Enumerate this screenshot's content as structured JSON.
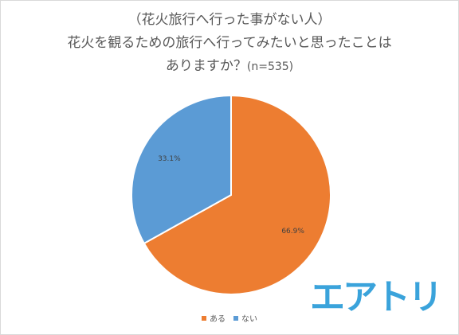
{
  "title": {
    "line1": "（花火旅行へ行った事がない人）",
    "line2": "花火を観るための旅行へ行ってみたいと思ったことは",
    "line3_main": "ありますか？",
    "line3_n": "(n=535)"
  },
  "chart_data": {
    "type": "pie",
    "title": "（花火旅行へ行った事がない人） 花火を観るための旅行へ行ってみたいと思ったことは ありますか？(n=535)",
    "slices": [
      {
        "label": "ある",
        "value": 66.9,
        "display": "66.9%",
        "color": "#ed7d31"
      },
      {
        "label": "ない",
        "value": 33.1,
        "display": "33.1%",
        "color": "#5b9bd5"
      }
    ],
    "legend_position": "bottom"
  },
  "brand": {
    "text": "エアトリ",
    "color": "#3aa3db"
  }
}
